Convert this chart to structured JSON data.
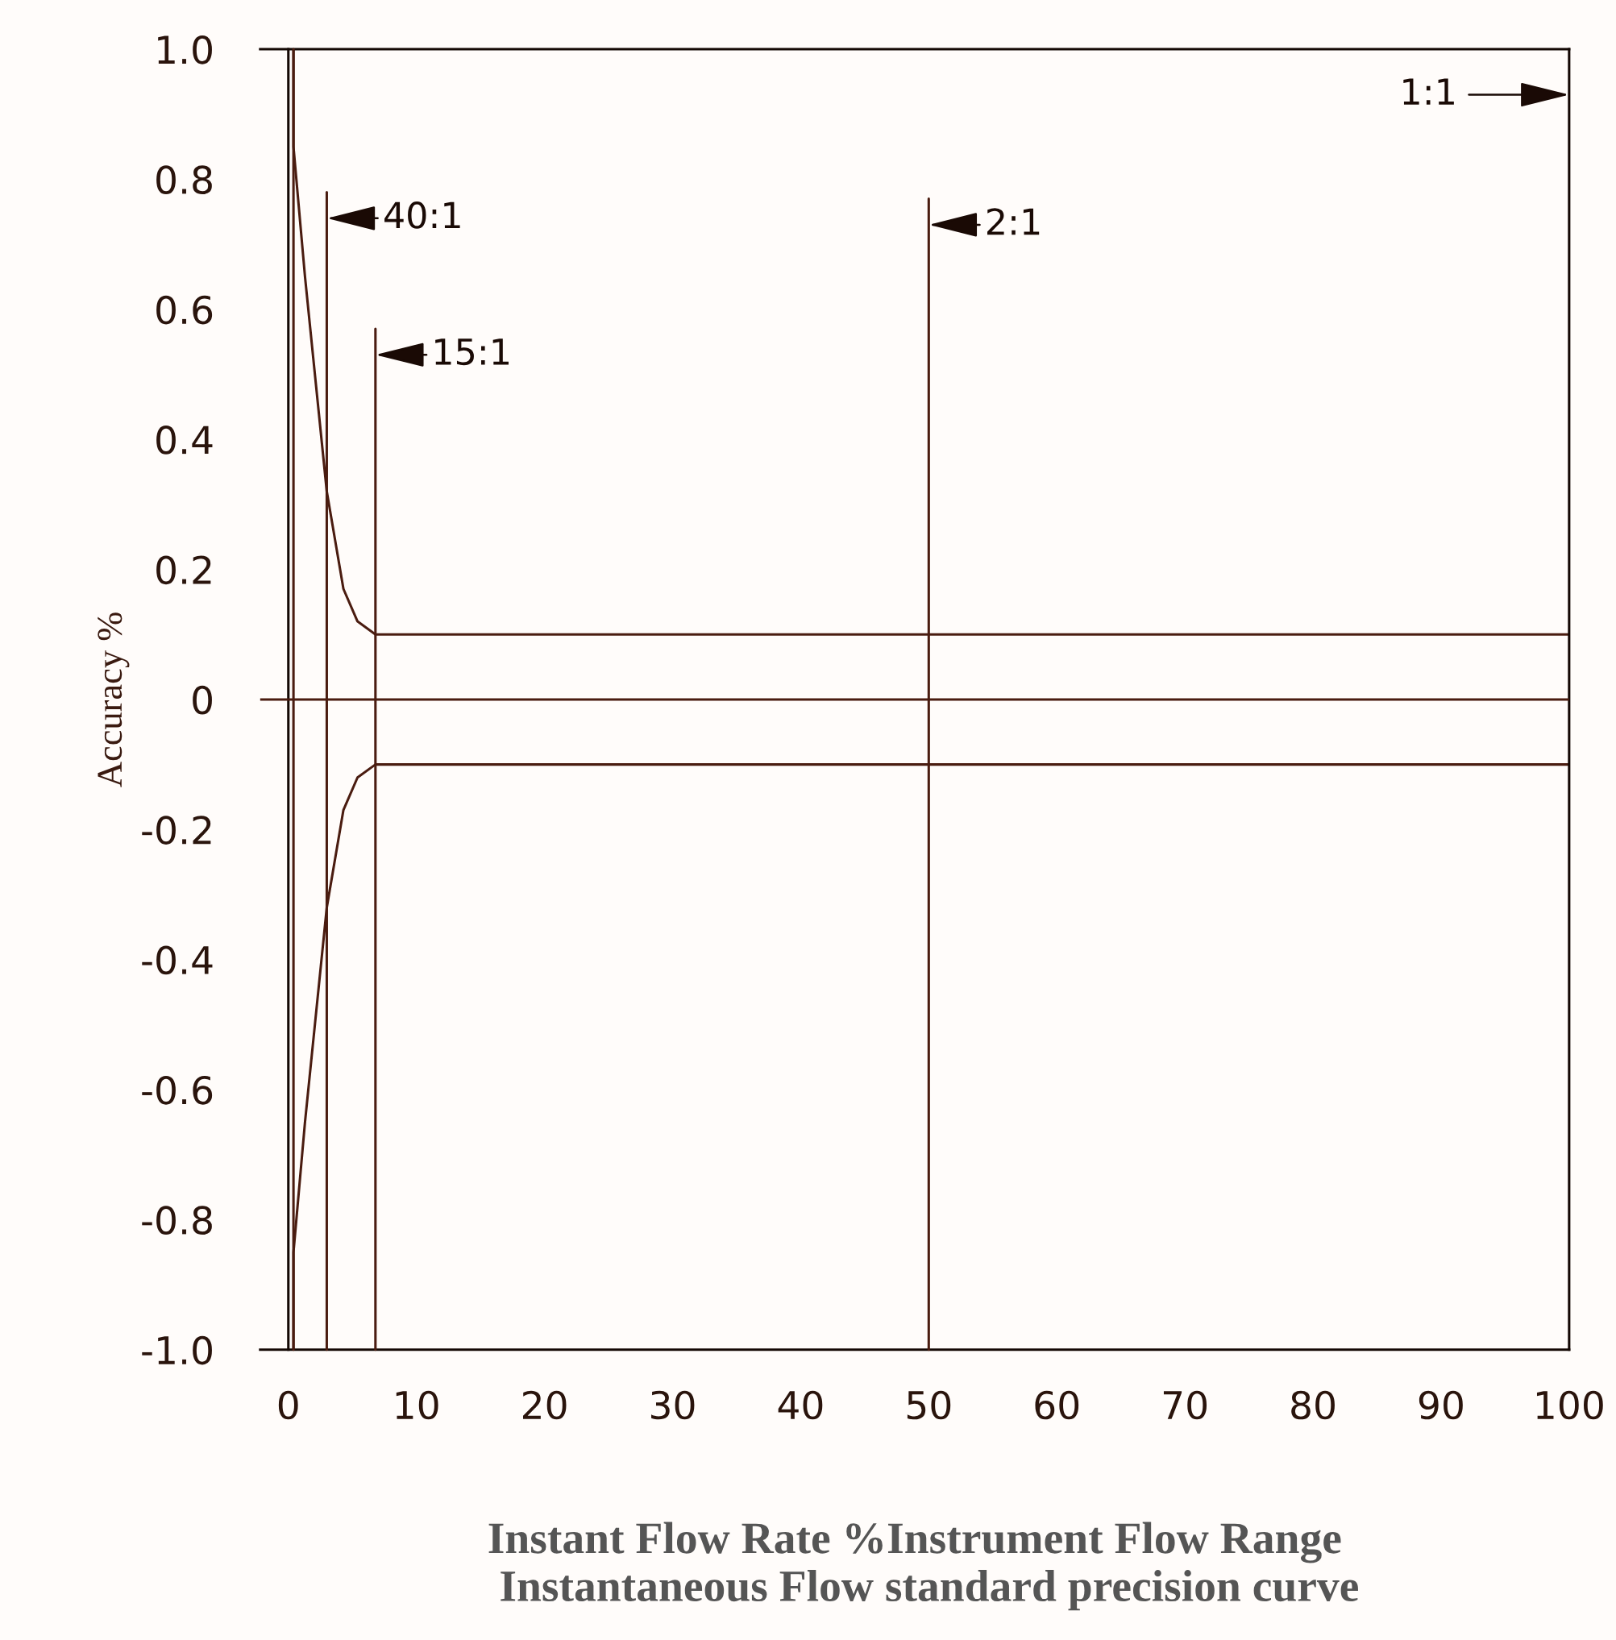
{
  "chart_data": {
    "type": "line",
    "xlabel": "Instant Flow Rate %Instrument Flow Range",
    "ylabel": "Accuracy %",
    "annotations": [
      {
        "text": "40:1",
        "x": 3.0,
        "y": 0.74
      },
      {
        "text": "15:1",
        "x": 6.8,
        "y": 0.53
      },
      {
        "text": "2:1",
        "x": 50,
        "y": 0.73
      },
      "1:1",
      "Instantaneous Flow standard precision curve"
    ],
    "series": [
      {
        "color": "#4a1c10",
        "x": [
          0.4,
          0.4,
          1.3,
          3.0,
          4.3,
          5.4,
          6.8,
          100
        ],
        "values": [
          1.0,
          0.85,
          0.65,
          0.32,
          0.17,
          0.12,
          0.1,
          0.1
        ]
      },
      {
        "color": "#4a1c10",
        "x": [
          0.4,
          0.4,
          1.3,
          3.0,
          4.3,
          5.4,
          6.8,
          100
        ],
        "values": [
          -1.0,
          -0.85,
          -0.65,
          -0.32,
          -0.17,
          -0.12,
          -0.1,
          -0.1
        ]
      }
    ],
    "ref_lines": [
      {
        "axis": "y",
        "value": 0,
        "color": "#4a1c10"
      },
      {
        "axis": "x",
        "value": 0.4,
        "color": "#4a1c10"
      },
      {
        "axis": "x",
        "value": 3.0,
        "color": "#4a1c10"
      },
      {
        "axis": "x",
        "value": 6.8,
        "color": "#4a1c10"
      },
      {
        "axis": "x",
        "value": 50,
        "color": "#4a1c10"
      }
    ],
    "xlim": [
      -2.2,
      100
    ],
    "ylim": [
      -1.0,
      1.0
    ],
    "xticks": [
      0,
      10,
      20,
      30,
      40,
      50,
      60,
      70,
      80,
      90,
      100
    ],
    "yticks": [
      {
        "value": -1.0,
        "label": "-1.0"
      },
      {
        "value": -0.8,
        "label": "-0.8"
      },
      {
        "value": -0.6,
        "label": "-0.6"
      },
      {
        "value": -0.4,
        "label": "-0.4"
      },
      {
        "value": -0.2,
        "label": "-0.2"
      },
      0,
      {
        "value": 0.2,
        "label": "0.2"
      },
      {
        "value": 0.4,
        "label": "0.4"
      },
      {
        "value": 0.6,
        "label": "0.6"
      },
      {
        "value": 0.8,
        "label": "0.8"
      },
      {
        "value": 1.0,
        "label": "1.0"
      }
    ],
    "marker": "none",
    "line_style": "solid"
  }
}
